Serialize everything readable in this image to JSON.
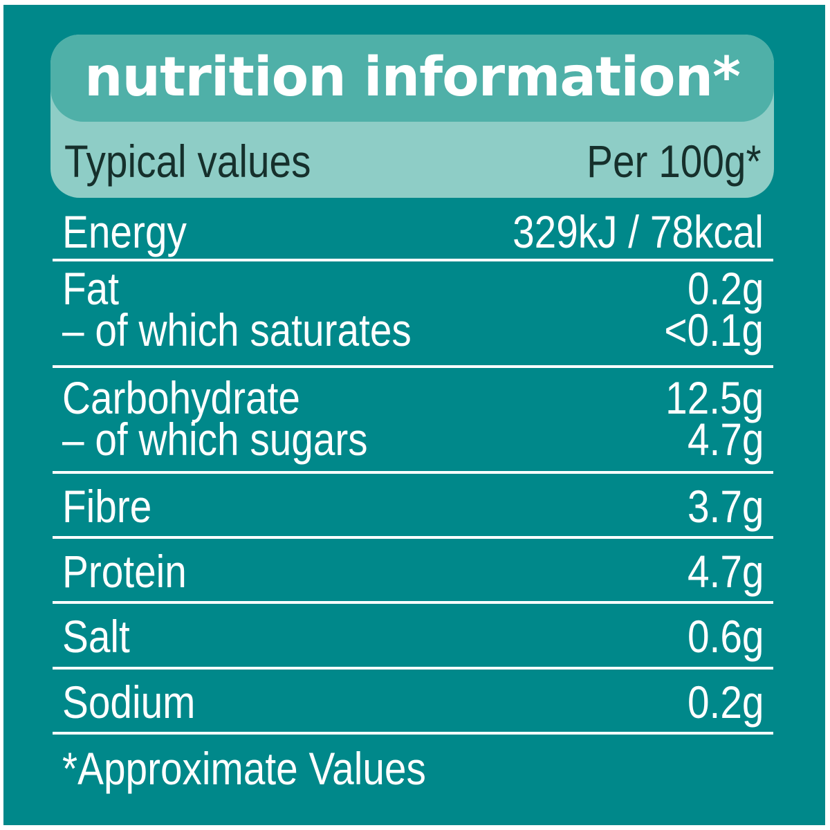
{
  "colors": {
    "background": "#00888a",
    "header_top": "#4fb0a8",
    "header_bottom": "#8ecdc6",
    "text": "#ffffff",
    "header_text_dark": "#16302c"
  },
  "title": "nutrition information*",
  "header": {
    "label": "Typical values",
    "value": "Per 100g*"
  },
  "rows": [
    {
      "label": "Energy",
      "value": "329kJ / 78kcal"
    },
    {
      "label": "Fat",
      "value": "0.2g"
    },
    {
      "label": "– of which saturates",
      "value": "<0.1g"
    },
    {
      "label": "Carbohydrate",
      "value": "12.5g"
    },
    {
      "label": "– of which sugars",
      "value": "4.7g"
    },
    {
      "label": "Fibre",
      "value": "3.7g"
    },
    {
      "label": "Protein",
      "value": "4.7g"
    },
    {
      "label": "Salt",
      "value": "0.6g"
    },
    {
      "label": "Sodium",
      "value": "0.2g"
    }
  ],
  "footnote": "*Approximate Values"
}
